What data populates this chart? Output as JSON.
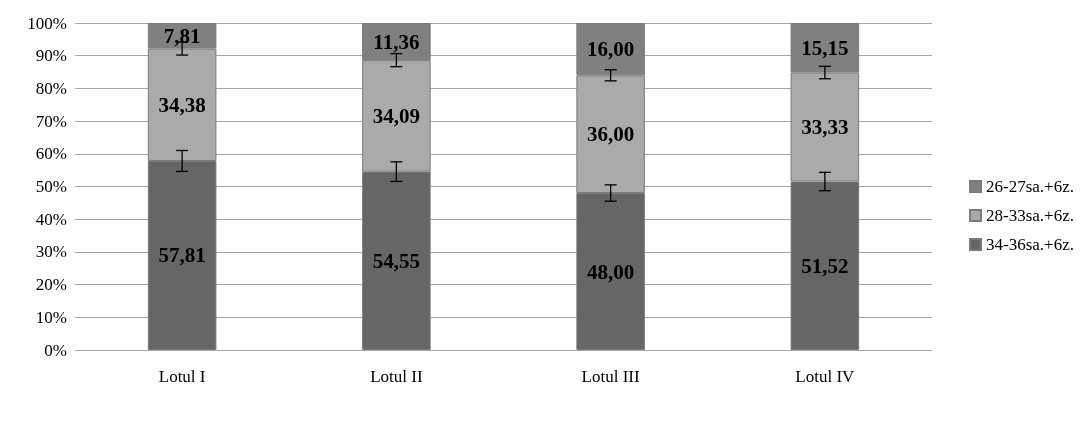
{
  "chart_data": {
    "type": "bar",
    "stacked": true,
    "categories": [
      "Lotul I",
      "Lotul II",
      "Lotul III",
      "Lotul IV"
    ],
    "series": [
      {
        "name": "34-36sa.+6z.",
        "color": "#666666",
        "values": [
          57.81,
          54.55,
          48.0,
          51.52
        ],
        "value_labels": [
          "57,81",
          "54,55",
          "48,00",
          "51,52"
        ],
        "errors": [
          3.2,
          3,
          2.5,
          2.8
        ]
      },
      {
        "name": "28-33sa.+6z.",
        "color": "#aaaaaa",
        "values": [
          34.38,
          34.09,
          36.0,
          33.33
        ],
        "value_labels": [
          "34,38",
          "34,09",
          "36,00",
          "33,33"
        ],
        "errors": [
          2,
          2,
          1.7,
          1.9
        ]
      },
      {
        "name": "26-27sa.+6z.",
        "color": "#808080",
        "values": [
          7.81,
          11.36,
          16.0,
          15.15
        ],
        "value_labels": [
          "7,81",
          "11,36",
          "16,00",
          "15,15"
        ]
      }
    ],
    "ylim": [
      0,
      100
    ],
    "yticks": [
      {
        "value": 0,
        "label": "0%"
      },
      {
        "value": 10,
        "label": "10%"
      },
      {
        "value": 20,
        "label": "20%"
      },
      {
        "value": 30,
        "label": "30%"
      },
      {
        "value": 40,
        "label": "40%"
      },
      {
        "value": 50,
        "label": "50%"
      },
      {
        "value": 60,
        "label": "60%"
      },
      {
        "value": 70,
        "label": "70%"
      },
      {
        "value": 80,
        "label": "80%"
      },
      {
        "value": 90,
        "label": "90%"
      },
      {
        "value": 100,
        "label": "100%"
      }
    ],
    "grid": "y",
    "legend": "right"
  }
}
